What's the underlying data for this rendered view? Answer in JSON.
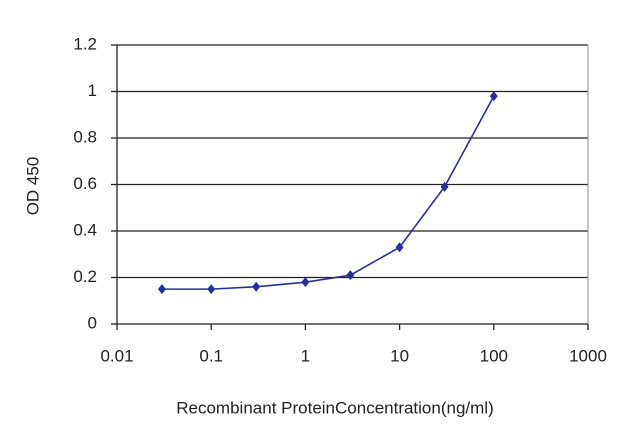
{
  "chart_data": {
    "type": "line",
    "x_label": "Recombinant ProteinConcentration(ng/ml)",
    "y_label": "OD 450",
    "x": [
      0.03,
      0.1,
      0.3,
      1,
      3,
      10,
      30,
      100
    ],
    "series": [
      {
        "name": "OD",
        "color": "#26309a",
        "values": [
          0.15,
          0.15,
          0.16,
          0.18,
          0.21,
          0.33,
          0.59,
          0.98
        ]
      }
    ],
    "xscale": "log",
    "xlim": [
      0.01,
      1000
    ],
    "xticks": [
      0.01,
      0.1,
      1,
      10,
      100,
      1000
    ],
    "ylim": [
      0,
      1.2
    ],
    "yticks": [
      0,
      0.2,
      0.4,
      0.6,
      0.8,
      1,
      1.2
    ],
    "grid": true
  }
}
